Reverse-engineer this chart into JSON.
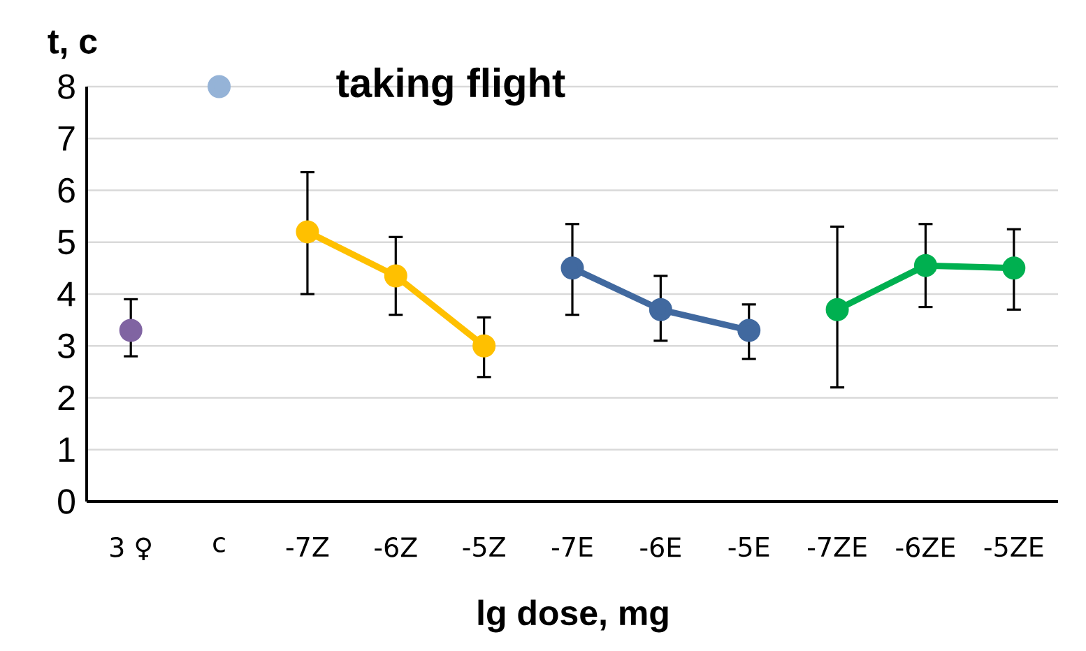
{
  "chart_data": {
    "type": "line",
    "xlabel": "lg dose, mg",
    "ylabel": "t, c",
    "categories": [
      "3 ♀",
      "c",
      "-7Z",
      "-6Z",
      "-5Z",
      "-7E",
      "-6E",
      "-5E",
      "-7ZE",
      "-6ZE",
      "-5ZE"
    ],
    "ylim": [
      0,
      8
    ],
    "yticks": [
      0,
      1,
      2,
      3,
      4,
      5,
      6,
      7,
      8
    ],
    "grid": "y",
    "marker": "circle",
    "line_style": "solid",
    "series": [
      {
        "type": "scatter",
        "color": "#8064a2",
        "values": [
          3.3,
          null,
          null,
          null,
          null,
          null,
          null,
          null,
          null,
          null,
          null
        ],
        "errors": [
          [
            2.8,
            3.9
          ],
          null,
          null,
          null,
          null,
          null,
          null,
          null,
          null,
          null,
          null
        ]
      },
      {
        "type": "scatter",
        "name": "taking flight",
        "color": "#95b3d7",
        "values": [
          null,
          8,
          null,
          null,
          null,
          null,
          null,
          null,
          null,
          null,
          null
        ]
      },
      {
        "color": "#ffc000",
        "values": [
          null,
          null,
          5.2,
          4.35,
          3.0,
          null,
          null,
          null,
          null,
          null,
          null
        ],
        "errors": [
          null,
          null,
          [
            4.0,
            6.35
          ],
          [
            3.6,
            5.1
          ],
          [
            2.4,
            3.55
          ],
          null,
          null,
          null,
          null,
          null,
          null
        ]
      },
      {
        "color": "#41699f",
        "values": [
          null,
          null,
          null,
          null,
          null,
          4.5,
          3.7,
          3.3,
          null,
          null,
          null
        ],
        "errors": [
          null,
          null,
          null,
          null,
          null,
          [
            3.6,
            5.35
          ],
          [
            3.1,
            4.35
          ],
          [
            2.75,
            3.8
          ],
          null,
          null,
          null
        ]
      },
      {
        "color": "#00b050",
        "values": [
          null,
          null,
          null,
          null,
          null,
          null,
          null,
          null,
          3.7,
          4.55,
          4.5
        ],
        "errors": [
          null,
          null,
          null,
          null,
          null,
          null,
          null,
          null,
          [
            2.2,
            5.3
          ],
          [
            3.75,
            5.35
          ],
          [
            3.7,
            5.25
          ]
        ]
      }
    ]
  }
}
